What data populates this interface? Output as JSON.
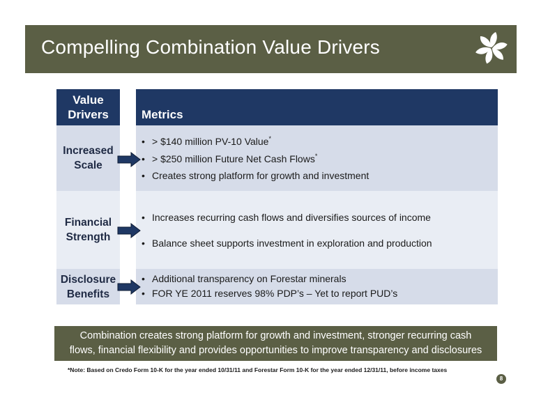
{
  "slide": {
    "title": "Compelling Combination Value Drivers",
    "page_number": "8"
  },
  "table": {
    "header_left_line1": "Value",
    "header_left_line2": "Drivers",
    "header_right": "Metrics",
    "rows": [
      {
        "driver_line1": "Increased",
        "driver_line2": "Scale",
        "metrics": [
          {
            "text": "> $140 million PV-10 Value",
            "sup": "*"
          },
          {
            "text": "> $250 million Future Net Cash Flows",
            "sup": "*"
          },
          {
            "text": "Creates strong platform for growth and investment",
            "sup": ""
          }
        ]
      },
      {
        "driver_line1": "Financial",
        "driver_line2": "Strength",
        "metrics": [
          {
            "text": "Increases recurring cash flows and diversifies sources of income",
            "sup": ""
          },
          {
            "text": "Balance sheet supports investment in exploration and production",
            "sup": ""
          }
        ]
      },
      {
        "driver_line1": "Disclosure",
        "driver_line2": "Benefits",
        "metrics": [
          {
            "text": "Additional transparency on Forestar minerals",
            "sup": ""
          },
          {
            "text": "FOR YE 2011 reserves 98% PDP’s – Yet to report PUD’s",
            "sup": ""
          }
        ]
      }
    ],
    "bullet_char": "•"
  },
  "summary": {
    "line1": "Combination creates strong platform for growth and investment, stronger recurring cash",
    "line2": "flows, financial flexibility and provides opportunities to improve transparency and disclosures"
  },
  "footnote": "*Note: Based on Credo Form 10-K for the year ended  10/31/11 and Forestar Form 10-K for the year ended  12/31/11, before income taxes",
  "colors": {
    "title_bar": "#5b5f45",
    "header_navy": "#1f3864",
    "row_light": "#d6dce9",
    "row_lighter": "#e9edf4"
  },
  "icons": {
    "logo": "forestar-leaf-logo-icon",
    "arrow": "right-arrow-icon"
  }
}
